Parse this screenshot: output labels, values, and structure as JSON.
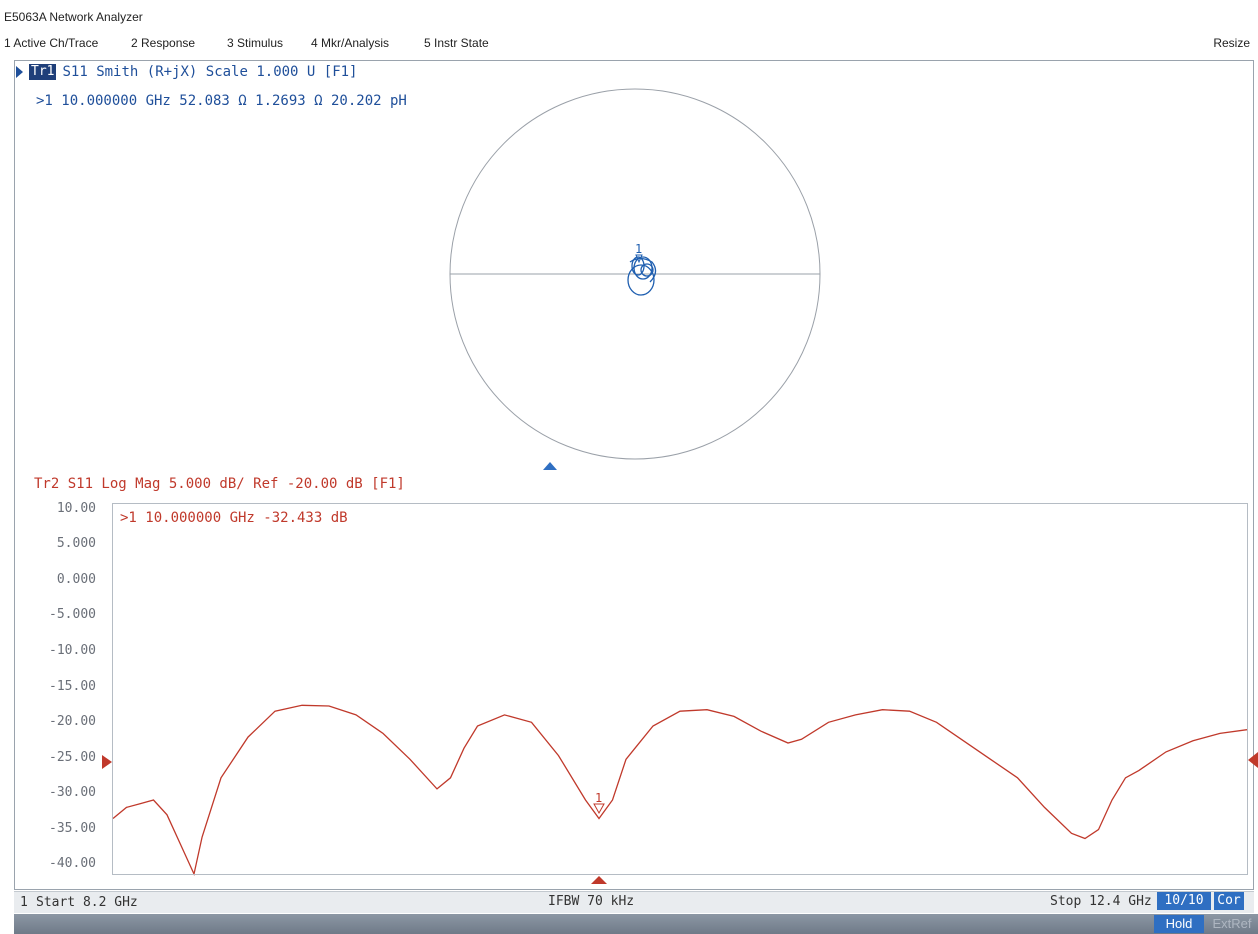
{
  "window": {
    "title": "E5063A Network Analyzer"
  },
  "menu": {
    "items": [
      {
        "label": "1 Active Ch/Trace"
      },
      {
        "label": "2 Response"
      },
      {
        "label": "3 Stimulus"
      },
      {
        "label": "4 Mkr/Analysis"
      },
      {
        "label": "5 Instr State"
      }
    ],
    "resize_label": "Resize"
  },
  "trace1": {
    "badge": "Tr1",
    "header": "S11 Smith (R+jX) Scale 1.000 U [F1]",
    "marker_readout": ">1  10.000000 GHz  52.083 Ω  1.2693 Ω  20.202 pH",
    "marker_label": "1",
    "color": "#1f4f9a"
  },
  "trace2": {
    "header": "Tr2 S11 Log Mag 5.000 dB/ Ref -20.00 dB [F1]",
    "marker_readout": ">1  10.000000 GHz -32.433 dB",
    "marker_label": "1",
    "color": "#c0392b",
    "y_ticks": [
      "10.00",
      "5.000",
      "0.000",
      "-5.000",
      "-10.00",
      "-15.00",
      "-20.00",
      "-25.00",
      "-30.00",
      "-35.00",
      "-40.00"
    ]
  },
  "status": {
    "channel": "1",
    "start": "Start 8.2 GHz",
    "ifbw": "IFBW 70 kHz",
    "stop": "Stop 12.4 GHz",
    "avg": "10/10",
    "cor": "Cor",
    "hold": "Hold",
    "extref": "ExtRef"
  },
  "chart_data": {
    "type": "line",
    "title": "Tr2 S11 Log Mag 5.000 dB/ Ref -20.00 dB [F1]",
    "xlabel": "",
    "ylabel": "",
    "xlim": [
      8.2,
      12.4
    ],
    "ylim": [
      -40,
      10
    ],
    "grid": false,
    "series": [
      {
        "name": "S11",
        "x": [
          8.2,
          8.25,
          8.3,
          8.35,
          8.4,
          8.45,
          8.5,
          8.53,
          8.6,
          8.7,
          8.8,
          8.9,
          9.0,
          9.1,
          9.2,
          9.3,
          9.4,
          9.45,
          9.5,
          9.55,
          9.65,
          9.75,
          9.85,
          9.95,
          10.0,
          10.05,
          10.1,
          10.2,
          10.3,
          10.4,
          10.5,
          10.6,
          10.7,
          10.75,
          10.85,
          10.95,
          11.05,
          11.15,
          11.25,
          11.35,
          11.45,
          11.55,
          11.65,
          11.75,
          11.8,
          11.85,
          11.9,
          11.95,
          12.0,
          12.1,
          12.2,
          12.3,
          12.4
        ],
        "y": [
          -32.5,
          -31,
          -30.5,
          -30,
          -32,
          -36,
          -40,
          -35,
          -27,
          -21.5,
          -18,
          -17.2,
          -17.3,
          -18.5,
          -21,
          -24.5,
          -28.5,
          -27,
          -23,
          -20,
          -18.5,
          -19.5,
          -24,
          -30,
          -32.5,
          -30,
          -24.5,
          -20,
          -18,
          -17.8,
          -18.7,
          -20.7,
          -22.3,
          -21.8,
          -19.5,
          -18.5,
          -17.8,
          -18,
          -19.5,
          -22,
          -24.5,
          -27,
          -31,
          -34.5,
          -35.2,
          -34,
          -30,
          -27,
          -26,
          -23.5,
          -22,
          -21,
          -20.5
        ]
      }
    ],
    "marker": {
      "label": "1",
      "x": 10.0,
      "y": -32.433
    }
  },
  "smith_chart": {
    "type": "smith",
    "scale": "1.000 U",
    "marker": {
      "label": "1",
      "freq": "10.000000 GHz",
      "r": "52.083 Ω",
      "x": "1.2693 Ω",
      "l": "20.202 pH"
    }
  }
}
